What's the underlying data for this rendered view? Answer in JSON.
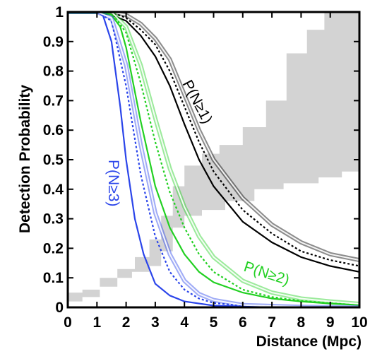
{
  "chart_data": {
    "type": "line",
    "title": "",
    "xlabel": "Distance (Mpc)",
    "ylabel": "Detection Probability",
    "xlim": [
      0,
      10
    ],
    "ylim": [
      0,
      1
    ],
    "x_ticks": [
      "0",
      "1",
      "2",
      "3",
      "4",
      "5",
      "6",
      "7",
      "8",
      "9",
      "10"
    ],
    "y_ticks": [
      "0",
      "0.1",
      "0.2",
      "0.3",
      "0.4",
      "0.5",
      "0.6",
      "0.7",
      "0.8",
      "0.9",
      "1"
    ],
    "grid": false,
    "colors": {
      "n1": "#000000",
      "n2": "#22d022",
      "n3": "#2b45ea",
      "region": "#d3d3d3"
    },
    "series_labels": {
      "n1": "P(N≥1)",
      "n2": "P(N≥2)",
      "n3": "P(N≥3)"
    },
    "series": [
      {
        "group": "n1",
        "style": "solid",
        "x": [
          0,
          1,
          1.5,
          2,
          2.5,
          3,
          3.5,
          4,
          4.5,
          5,
          6,
          7,
          8,
          9,
          10
        ],
        "y": [
          1,
          1,
          0.99,
          0.97,
          0.92,
          0.85,
          0.75,
          0.62,
          0.5,
          0.41,
          0.29,
          0.22,
          0.17,
          0.14,
          0.12
        ]
      },
      {
        "group": "n1",
        "style": "dotted",
        "x": [
          0,
          1,
          1.5,
          2,
          2.5,
          3,
          3.5,
          4,
          4.5,
          5,
          6,
          7,
          8,
          9,
          10
        ],
        "y": [
          1,
          1,
          1,
          0.98,
          0.94,
          0.89,
          0.8,
          0.68,
          0.56,
          0.46,
          0.33,
          0.25,
          0.19,
          0.16,
          0.14
        ]
      },
      {
        "group": "n1",
        "style": "band",
        "x": [
          0,
          1,
          1.5,
          2,
          2.5,
          3,
          3.5,
          4,
          4.5,
          5,
          6,
          7,
          8,
          9,
          10
        ],
        "y": [
          1,
          1,
          1,
          0.99,
          0.96,
          0.91,
          0.84,
          0.72,
          0.6,
          0.5,
          0.37,
          0.28,
          0.22,
          0.18,
          0.16
        ]
      },
      {
        "group": "n2",
        "style": "solid",
        "x": [
          0,
          1,
          1.5,
          1.8,
          2,
          2.5,
          3,
          3.5,
          4,
          4.5,
          5,
          6,
          7,
          8,
          9,
          10
        ],
        "y": [
          1,
          1,
          0.99,
          0.95,
          0.88,
          0.63,
          0.41,
          0.27,
          0.18,
          0.12,
          0.085,
          0.05,
          0.03,
          0.02,
          0.013,
          0.008
        ]
      },
      {
        "group": "n2",
        "style": "dotted",
        "x": [
          0,
          1,
          1.5,
          2,
          2.5,
          3,
          3.5,
          4,
          4.5,
          5,
          6,
          7,
          8,
          9,
          10
        ],
        "y": [
          1,
          1,
          1,
          0.93,
          0.76,
          0.56,
          0.39,
          0.27,
          0.18,
          0.12,
          0.06,
          0.035,
          0.022,
          0.014,
          0.009
        ]
      },
      {
        "group": "n2",
        "style": "band",
        "x": [
          0,
          1,
          1.5,
          2,
          2.5,
          3,
          3.5,
          4,
          4.5,
          5,
          6,
          7,
          8,
          9,
          10
        ],
        "y": [
          1,
          1,
          1,
          0.95,
          0.82,
          0.64,
          0.47,
          0.34,
          0.24,
          0.17,
          0.09,
          0.05,
          0.03,
          0.02,
          0.012
        ]
      },
      {
        "group": "n3",
        "style": "solid",
        "x": [
          0,
          1,
          1.2,
          1.5,
          1.8,
          2,
          2.3,
          2.6,
          3,
          3.5,
          4,
          5,
          6,
          8,
          10
        ],
        "y": [
          1,
          1,
          0.99,
          0.9,
          0.68,
          0.5,
          0.3,
          0.18,
          0.08,
          0.04,
          0.02,
          0.006,
          0.003,
          0.001,
          0
        ]
      },
      {
        "group": "n3",
        "style": "dotted",
        "x": [
          0,
          1,
          1.5,
          2,
          2.5,
          3,
          3.5,
          4,
          4.5,
          5,
          6,
          8,
          10
        ],
        "y": [
          1,
          1,
          0.97,
          0.75,
          0.45,
          0.24,
          0.12,
          0.06,
          0.03,
          0.015,
          0.005,
          0.001,
          0
        ]
      },
      {
        "group": "n3",
        "style": "band",
        "x": [
          0,
          1,
          1.5,
          2,
          2.5,
          3,
          3.5,
          4,
          4.5,
          5,
          6,
          8,
          10
        ],
        "y": [
          1,
          1,
          0.98,
          0.82,
          0.55,
          0.32,
          0.18,
          0.09,
          0.045,
          0.025,
          0.008,
          0.002,
          0
        ]
      }
    ],
    "gray_region": {
      "lower": [
        [
          0,
          0.02
        ],
        [
          0.5,
          0.02
        ],
        [
          0.5,
          0.035
        ],
        [
          1.1,
          0.035
        ],
        [
          1.1,
          0.07
        ],
        [
          1.7,
          0.07
        ],
        [
          1.7,
          0.1
        ],
        [
          2.2,
          0.1
        ],
        [
          2.2,
          0.12
        ],
        [
          2.8,
          0.12
        ],
        [
          2.8,
          0.14
        ],
        [
          3.2,
          0.14
        ],
        [
          3.2,
          0.19
        ],
        [
          3.6,
          0.19
        ],
        [
          3.6,
          0.27
        ],
        [
          4.0,
          0.27
        ],
        [
          4.0,
          0.31
        ],
        [
          4.6,
          0.31
        ],
        [
          4.6,
          0.33
        ],
        [
          5.4,
          0.33
        ],
        [
          5.4,
          0.36
        ],
        [
          6.4,
          0.36
        ],
        [
          6.4,
          0.4
        ],
        [
          7.4,
          0.4
        ],
        [
          7.4,
          0.42
        ],
        [
          8.6,
          0.42
        ],
        [
          8.6,
          0.44
        ],
        [
          9.4,
          0.44
        ],
        [
          9.4,
          0.46
        ],
        [
          10,
          0.46
        ]
      ],
      "upper": [
        [
          0,
          0.05
        ],
        [
          0.5,
          0.05
        ],
        [
          0.5,
          0.06
        ],
        [
          1.1,
          0.06
        ],
        [
          1.1,
          0.1
        ],
        [
          1.7,
          0.1
        ],
        [
          1.7,
          0.13
        ],
        [
          2.3,
          0.13
        ],
        [
          2.3,
          0.17
        ],
        [
          2.8,
          0.17
        ],
        [
          2.8,
          0.23
        ],
        [
          3.2,
          0.23
        ],
        [
          3.2,
          0.31
        ],
        [
          3.6,
          0.31
        ],
        [
          3.6,
          0.41
        ],
        [
          4.0,
          0.41
        ],
        [
          4.0,
          0.48
        ],
        [
          4.6,
          0.48
        ],
        [
          4.6,
          0.52
        ],
        [
          5.2,
          0.52
        ],
        [
          5.2,
          0.55
        ],
        [
          6.0,
          0.55
        ],
        [
          6.0,
          0.61
        ],
        [
          6.8,
          0.61
        ],
        [
          6.8,
          0.7
        ],
        [
          7.5,
          0.7
        ],
        [
          7.5,
          0.86
        ],
        [
          8.2,
          0.86
        ],
        [
          8.2,
          0.94
        ],
        [
          8.8,
          0.94
        ],
        [
          8.8,
          1
        ],
        [
          10,
          1
        ]
      ]
    }
  }
}
